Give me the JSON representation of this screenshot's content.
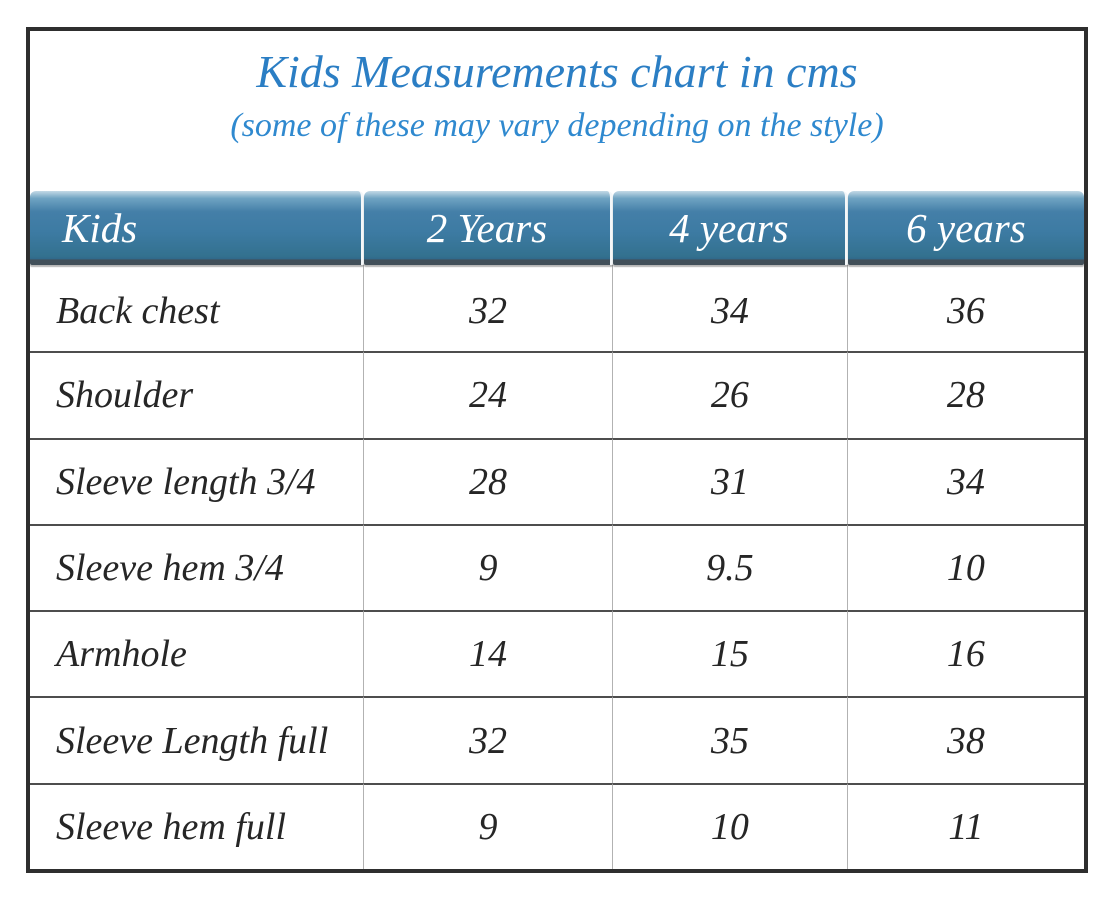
{
  "chart_data": {
    "type": "table",
    "title": "Kids Measurements chart in cms",
    "subtitle": "(some of these may vary depending on the style)",
    "columns": [
      "Kids",
      "2 Years",
      "4 years",
      "6 years"
    ],
    "rows": [
      [
        "Back chest",
        "32",
        "34",
        "36"
      ],
      [
        "Shoulder",
        "24",
        "26",
        "28"
      ],
      [
        "Sleeve length 3/4",
        "28",
        "31",
        "34"
      ],
      [
        "Sleeve hem 3/4",
        "9",
        "9.5",
        "10"
      ],
      [
        "Armhole",
        "14",
        "15",
        "16"
      ],
      [
        "Sleeve Length full",
        "32",
        "35",
        "38"
      ],
      [
        "Sleeve hem full",
        "9",
        "10",
        "11"
      ]
    ],
    "units": "cms"
  },
  "colors": {
    "title_blue": "#2b7ec4",
    "subtitle_blue": "#2f89cf",
    "header_gradient_top": "#c3d9e6",
    "header_gradient_mid": "#3d7ba3",
    "header_gradient_bottom": "#31688a",
    "header_bottom_strip": "#414f59",
    "header_text": "#ffffff",
    "body_text": "#262626",
    "frame_border": "#2e2e2e",
    "column_line": "#b2b2b2",
    "row_line": "#4e4e4e"
  }
}
